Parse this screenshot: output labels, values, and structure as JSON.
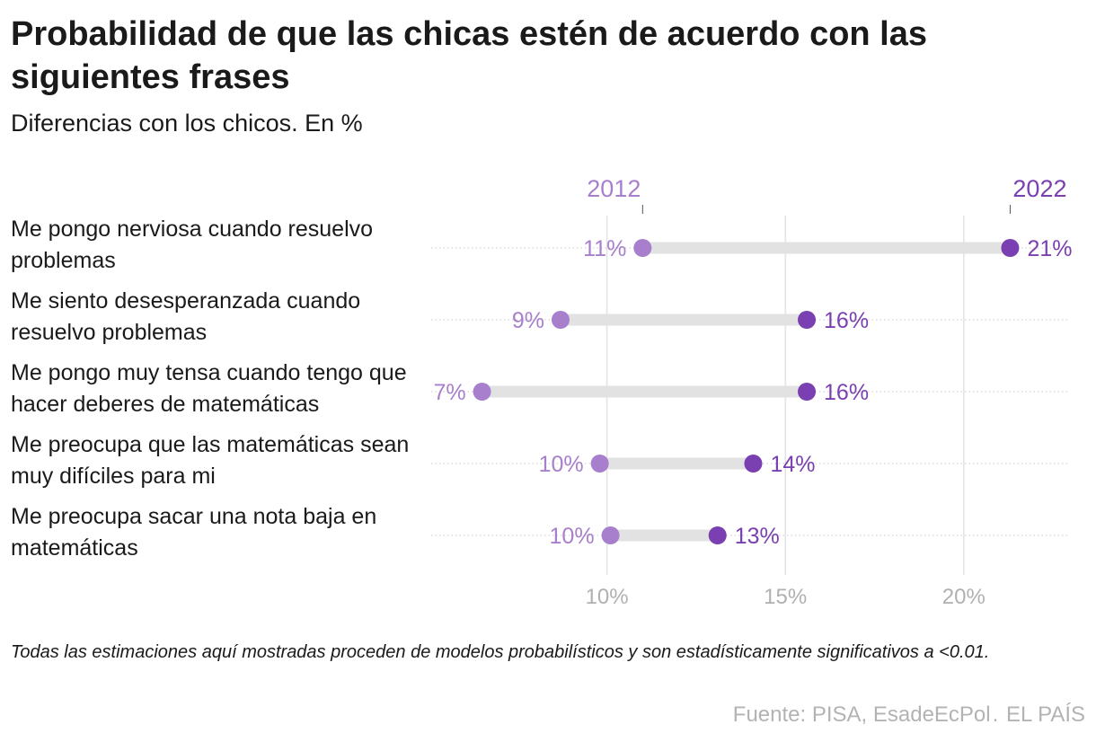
{
  "header": {
    "title": "Probabilidad de que las chicas estén de acuerdo con las siguientes frases",
    "subtitle": "Diferencias con los chicos. En %"
  },
  "chart_data": {
    "type": "dumbbell",
    "series": [
      {
        "name": "2012",
        "color": "#a87fcc"
      },
      {
        "name": "2022",
        "color": "#7a3fb0"
      }
    ],
    "categories": [
      "Me pongo nerviosa cuando resuelvo problemas",
      "Me siento desesperanzada cuando resuelvo problemas",
      "Me pongo muy tensa cuando tengo que hacer deberes de matemáticas",
      "Me preocupa que las matemáticas sean muy difíciles para mi",
      "Me preocupa sacar una nota baja en matemáticas"
    ],
    "rows": [
      {
        "label": "Me pongo nerviosa cuando resuelvo problemas",
        "v2012": 11.0,
        "v2022": 21.3,
        "label2012": "11%",
        "label2022": "21%"
      },
      {
        "label": "Me siento desesperanzada cuando resuelvo problemas",
        "v2012": 8.7,
        "v2022": 15.6,
        "label2012": "9%",
        "label2022": "16%"
      },
      {
        "label": "Me pongo muy tensa cuando tengo que hacer deberes de matemáticas",
        "v2012": 6.5,
        "v2022": 15.6,
        "label2012": "7%",
        "label2022": "16%"
      },
      {
        "label": "Me preocupa que las matemáticas sean muy difíciles para mi",
        "v2012": 9.8,
        "v2022": 14.1,
        "label2012": "10%",
        "label2022": "14%"
      },
      {
        "label": "Me preocupa sacar una nota baja en matemáticas",
        "v2012": 10.1,
        "v2022": 13.1,
        "label2012": "10%",
        "label2022": "13%"
      }
    ],
    "xticks": [
      10,
      15,
      20
    ],
    "xtick_labels": [
      "10%",
      "15%",
      "20%"
    ],
    "xlim": [
      5.0,
      22.9
    ],
    "grid": true,
    "legend_placement": "top"
  },
  "footer": {
    "note": "Todas las estimaciones aquí mostradas proceden de modelos probabilísticos y son estadísticamente significativos a <0.01.",
    "source": "Fuente: PISA, EsadeEcPol",
    "publisher": "EL PAÍS",
    "separator": "."
  }
}
